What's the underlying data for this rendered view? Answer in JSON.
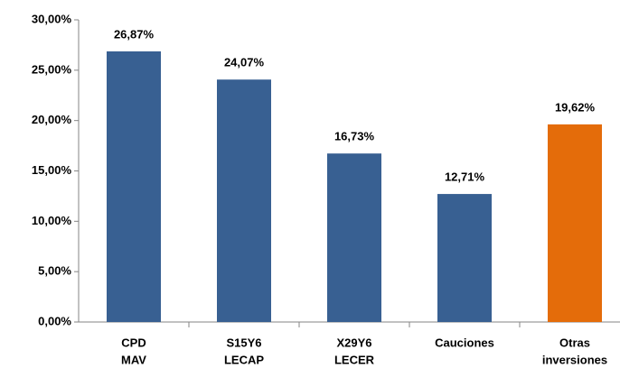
{
  "chart_data": {
    "type": "bar",
    "categories": [
      [
        "CPD",
        "MAV"
      ],
      [
        "S15Y6",
        "LECAP"
      ],
      [
        "X29Y6",
        "LECER"
      ],
      [
        "Cauciones"
      ],
      [
        "Otras",
        "inversiones"
      ]
    ],
    "values": [
      26.87,
      24.07,
      16.73,
      12.71,
      19.62
    ],
    "value_labels": [
      "26,87%",
      "24,07%",
      "16,73%",
      "12,71%",
      "19,62%"
    ],
    "colors": [
      "#386092",
      "#386092",
      "#386092",
      "#386092",
      "#e46c0a"
    ],
    "ylim": [
      0,
      30
    ],
    "yticks": [
      {
        "value": 0,
        "label": "0,00%"
      },
      {
        "value": 5,
        "label": "5,00%"
      },
      {
        "value": 10,
        "label": "10,00%"
      },
      {
        "value": 15,
        "label": "15,00%"
      },
      {
        "value": 20,
        "label": "20,00%"
      },
      {
        "value": 25,
        "label": "25,00%"
      },
      {
        "value": 30,
        "label": "30,00%"
      }
    ],
    "grid": false
  }
}
